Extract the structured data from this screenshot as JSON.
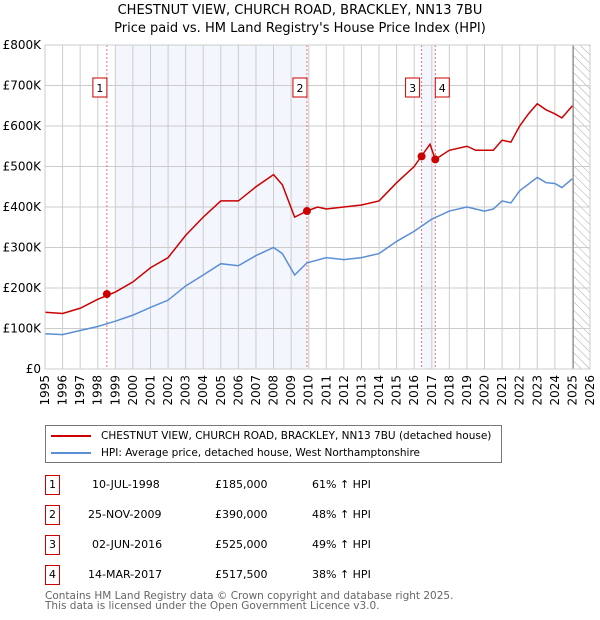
{
  "chart_data": {
    "type": "line",
    "title": "CHESTNUT VIEW, CHURCH ROAD, BRACKLEY, NN13 7BU",
    "subtitle": "Price paid vs. HM Land Registry's House Price Index (HPI)",
    "xlim": [
      1995,
      2026
    ],
    "ylim": [
      0,
      800000
    ],
    "x_ticks": [
      "1995",
      "1996",
      "1997",
      "1998",
      "1999",
      "2000",
      "2001",
      "2002",
      "2003",
      "2004",
      "2005",
      "2006",
      "2007",
      "2008",
      "2009",
      "2010",
      "2011",
      "2012",
      "2013",
      "2014",
      "2015",
      "2016",
      "2017",
      "2018",
      "2019",
      "2020",
      "2021",
      "2022",
      "2023",
      "2024",
      "2025",
      "2026"
    ],
    "y_ticks": [
      {
        "v": 0,
        "label": "£0"
      },
      {
        "v": 100000,
        "label": "£100K"
      },
      {
        "v": 200000,
        "label": "£200K"
      },
      {
        "v": 300000,
        "label": "£300K"
      },
      {
        "v": 400000,
        "label": "£400K"
      },
      {
        "v": 500000,
        "label": "£500K"
      },
      {
        "v": 600000,
        "label": "£600K"
      },
      {
        "v": 700000,
        "label": "£700K"
      },
      {
        "v": 800000,
        "label": "£800K"
      }
    ],
    "grid": true,
    "series": [
      {
        "name": "CHESTNUT VIEW, CHURCH ROAD, BRACKLEY, NN13 7BU (detached house)",
        "color": "#cc0000",
        "x": [
          1995,
          1996,
          1997,
          1998,
          1999,
          2000,
          2001,
          2002,
          2003,
          2004,
          2005,
          2006,
          2007,
          2008,
          2008.5,
          2009.2,
          2009.9,
          2010.5,
          2011,
          2012,
          2013,
          2014,
          2015,
          2016,
          2016.4,
          2016.9,
          2017.2,
          2018,
          2019,
          2019.5,
          2020.5,
          2021,
          2021.5,
          2022,
          2022.5,
          2023,
          2023.5,
          2024,
          2024.4,
          2025
        ],
        "y": [
          140000,
          137000,
          150000,
          172000,
          190000,
          215000,
          250000,
          275000,
          330000,
          375000,
          415000,
          415000,
          450000,
          480000,
          455000,
          375000,
          390000,
          400000,
          395000,
          400000,
          405000,
          415000,
          460000,
          500000,
          525000,
          555000,
          517500,
          540000,
          550000,
          540000,
          540000,
          565000,
          560000,
          600000,
          630000,
          655000,
          640000,
          630000,
          620000,
          650000
        ]
      },
      {
        "name": "HPI: Average price, detached house, West Northamptonshire",
        "color": "#5b8fd4",
        "x": [
          1995,
          1996,
          1997,
          1998,
          1999,
          2000,
          2001,
          2002,
          2003,
          2004,
          2005,
          2006,
          2007,
          2008,
          2008.5,
          2009.2,
          2009.9,
          2011,
          2012,
          2013,
          2014,
          2015,
          2016,
          2017,
          2018,
          2019,
          2020,
          2020.5,
          2021,
          2021.5,
          2022,
          2023,
          2023.5,
          2024,
          2024.4,
          2025
        ],
        "y": [
          87000,
          85000,
          95000,
          105000,
          118000,
          133000,
          152000,
          170000,
          205000,
          232000,
          260000,
          255000,
          280000,
          300000,
          285000,
          232000,
          262000,
          275000,
          270000,
          275000,
          285000,
          315000,
          340000,
          370000,
          390000,
          400000,
          390000,
          395000,
          415000,
          410000,
          440000,
          473000,
          460000,
          458000,
          448000,
          470000
        ]
      }
    ],
    "sales": [
      {
        "id": "1",
        "date": "10-JUL-1998",
        "x": 1998.52,
        "price": "£185,000",
        "value": 185000,
        "hpi": "61% ↑ HPI"
      },
      {
        "id": "2",
        "date": "25-NOV-2009",
        "x": 2009.9,
        "price": "£390,000",
        "value": 390000,
        "hpi": "48% ↑ HPI"
      },
      {
        "id": "3",
        "date": "02-JUN-2016",
        "x": 2016.42,
        "price": "£525,000",
        "value": 525000,
        "hpi": "49% ↑ HPI"
      },
      {
        "id": "4",
        "date": "14-MAR-2017",
        "x": 2017.2,
        "price": "£517,500",
        "value": 517500,
        "hpi": "38% ↑ HPI"
      }
    ],
    "legend_position": "bottom"
  },
  "footer": [
    "Contains HM Land Registry data © Crown copyright and database right 2025.",
    "This data is licensed under the Open Government Licence v3.0."
  ]
}
